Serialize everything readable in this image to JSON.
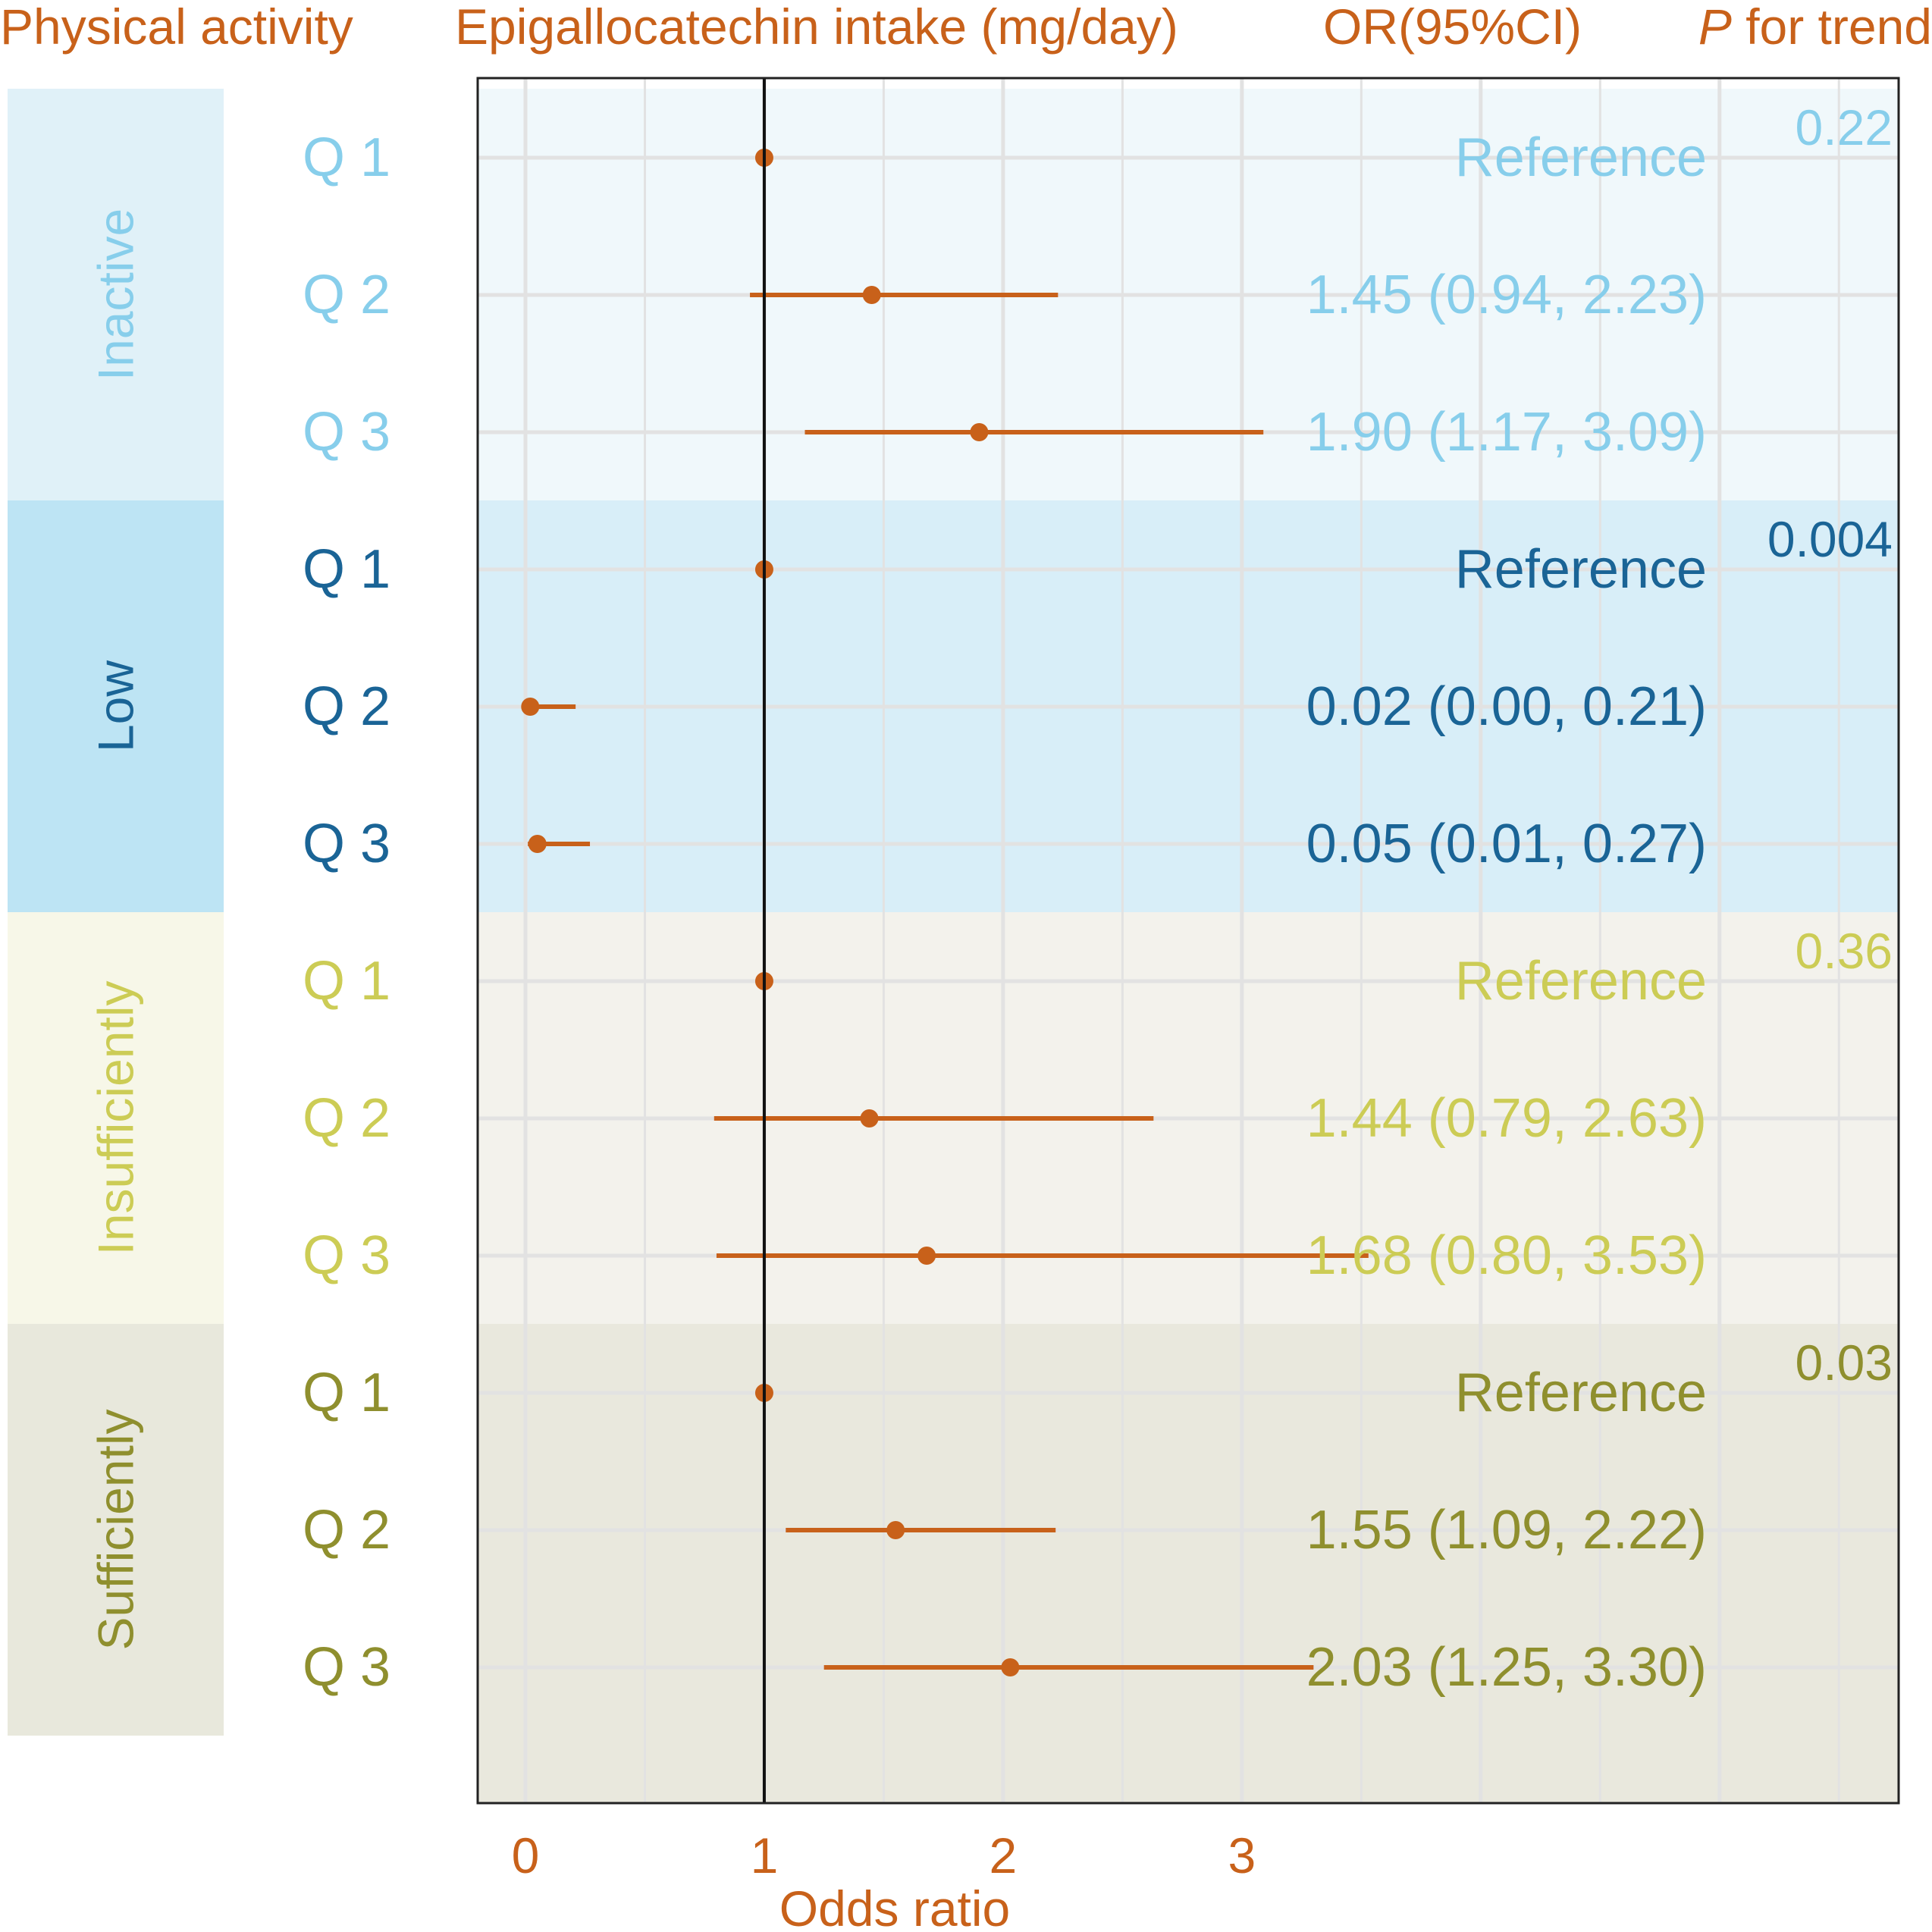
{
  "headers": {
    "activity": "Physical activity",
    "intake": "Epigallocatechin intake (mg/day)",
    "or": "OR(95%CI)",
    "p_italic": "P",
    "p_rest": " for trend"
  },
  "colors": {
    "accent": "#c8611a",
    "refline": "#111111",
    "frame": "#222222",
    "grid": "#e2e2e2",
    "groups": [
      {
        "text": "#87ceeb",
        "band": "#e0f1f8",
        "panel": "#f0f8fb"
      },
      {
        "text": "#1a6496",
        "band": "#bde4f4",
        "panel": "#d8eef8"
      },
      {
        "text": "#cccc55",
        "band": "#f7f7e8",
        "panel": "#f3f2ec"
      },
      {
        "text": "#8f8f2e",
        "band": "#e8e8dc",
        "panel": "#e9e8dd"
      }
    ]
  },
  "chart_data": {
    "type": "forest",
    "xlabel": "Odds ratio",
    "xlim": [
      -0.2,
      5.75
    ],
    "xticks": [
      0,
      1,
      2,
      3
    ],
    "reference_value": 1,
    "groups": [
      {
        "name": "Inactive",
        "p_trend": "0.22",
        "rows": [
          {
            "label": "Q 1",
            "or": 1.0,
            "lower": null,
            "upper": null,
            "text": "Reference"
          },
          {
            "label": "Q 2",
            "or": 1.45,
            "lower": 0.94,
            "upper": 2.23,
            "text": "1.45 (0.94, 2.23)"
          },
          {
            "label": "Q 3",
            "or": 1.9,
            "lower": 1.17,
            "upper": 3.09,
            "text": "1.90 (1.17, 3.09)"
          }
        ]
      },
      {
        "name": "Low",
        "p_trend": "0.004",
        "rows": [
          {
            "label": "Q 1",
            "or": 1.0,
            "lower": null,
            "upper": null,
            "text": "Reference"
          },
          {
            "label": "Q 2",
            "or": 0.02,
            "lower": 0.0,
            "upper": 0.21,
            "text": "0.02 (0.00, 0.21)"
          },
          {
            "label": "Q 3",
            "or": 0.05,
            "lower": 0.01,
            "upper": 0.27,
            "text": "0.05 (0.01, 0.27)"
          }
        ]
      },
      {
        "name": "Insufficiently",
        "p_trend": "0.36",
        "rows": [
          {
            "label": "Q 1",
            "or": 1.0,
            "lower": null,
            "upper": null,
            "text": "Reference"
          },
          {
            "label": "Q 2",
            "or": 1.44,
            "lower": 0.79,
            "upper": 2.63,
            "text": "1.44 (0.79, 2.63)"
          },
          {
            "label": "Q 3",
            "or": 1.68,
            "lower": 0.8,
            "upper": 3.53,
            "text": "1.68 (0.80, 3.53)"
          }
        ]
      },
      {
        "name": "Sufficiently",
        "p_trend": "0.03",
        "rows": [
          {
            "label": "Q 1",
            "or": 1.0,
            "lower": null,
            "upper": null,
            "text": "Reference"
          },
          {
            "label": "Q 2",
            "or": 1.55,
            "lower": 1.09,
            "upper": 2.22,
            "text": "1.55 (1.09, 2.22)"
          },
          {
            "label": "Q 3",
            "or": 2.03,
            "lower": 1.25,
            "upper": 3.3,
            "text": "2.03 (1.25, 3.30)"
          }
        ]
      }
    ]
  }
}
